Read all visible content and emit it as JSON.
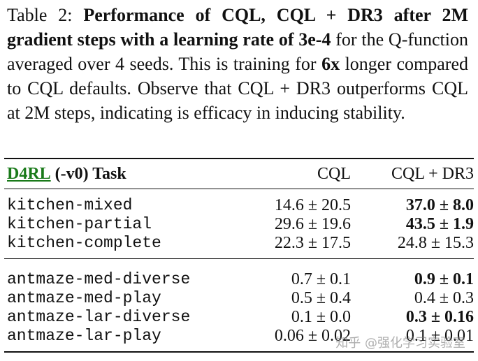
{
  "caption": {
    "label": "Table 2:",
    "bold_1": "Performance of CQL, CQL + DR3 after 2M gradient steps with a learning rate of 3e-4",
    "text_1": "for the Q-function averaged over 4 seeds. This is training for",
    "bold_2": "6x",
    "text_2": "longer compared to CQL defaults. Observe that CQL + DR3 outperforms CQL at 2M steps, indicating is efficacy in inducing stability."
  },
  "table": {
    "header": [
      "D4RL",
      "(-v0) Task",
      "CQL",
      "CQL + DR3"
    ],
    "groups": [
      {
        "rows": [
          [
            "kitchen-mixed",
            "14.6 ± 20.5",
            "37.0 ± 8.0"
          ],
          [
            "kitchen-partial",
            "29.6 ± 19.6",
            "43.5 ± 1.9"
          ],
          [
            "kitchen-complete",
            "22.3 ± 17.5",
            "24.8 ± 15.3"
          ]
        ],
        "bold": [
          true,
          true,
          false
        ]
      },
      {
        "rows": [
          [
            "antmaze-med-diverse",
            "0.7 ± 0.1",
            "0.9 ± 0.1"
          ],
          [
            "antmaze-med-play",
            "0.5 ± 0.4",
            "0.4 ± 0.3"
          ],
          [
            "antmaze-lar-diverse",
            "0.1 ± 0.0",
            "0.3 ± 0.16"
          ],
          [
            "antmaze-lar-play",
            "0.06 ± 0.02",
            "0.1 ± 0.01"
          ]
        ],
        "bold": [
          true,
          false,
          true,
          false
        ]
      }
    ]
  },
  "watermark": "知乎 @强化学习实验室"
}
